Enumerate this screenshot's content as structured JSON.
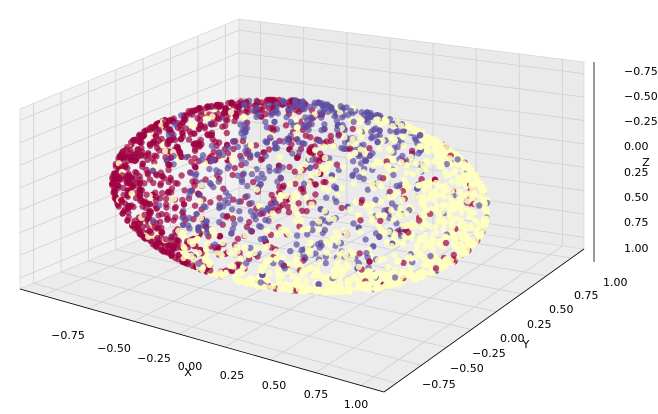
{
  "chart_data": {
    "type": "scatter",
    "projection": "3d",
    "title": "",
    "xlabel": "X",
    "ylabel": "Y",
    "zlabel": "Z",
    "xlim": [
      -1.0,
      1.0
    ],
    "ylim": [
      -1.0,
      1.0
    ],
    "zlim": [
      -1.0,
      1.0
    ],
    "xticks": [
      "−0.75",
      "−0.50",
      "−0.25",
      "0.00",
      "0.25",
      "0.50",
      "0.75",
      "1.00"
    ],
    "yticks": [
      "−0.75",
      "−0.50",
      "−0.25",
      "0.00",
      "0.25",
      "0.50",
      "0.75",
      "1.00"
    ],
    "zticks": [
      "−0.75",
      "−0.50",
      "−0.25",
      "0.00",
      "0.25",
      "0.50",
      "0.75",
      "1.00"
    ],
    "grid": true,
    "pane_color": "#f2f2f2",
    "colormap": "Spectral",
    "groups": [
      {
        "color": "#9e0142",
        "description_value": "x < -0.2 (left side)"
      },
      {
        "color": "#5e4fa2",
        "description_value": "upper middle"
      },
      {
        "color": "#ffffbf",
        "description_value": "right side"
      }
    ],
    "sample_points": [
      {
        "x": -0.9,
        "y": 0.0,
        "z": 0.1,
        "group": 0
      },
      {
        "x": -0.6,
        "y": -0.4,
        "z": -0.3,
        "group": 0
      },
      {
        "x": -0.5,
        "y": 0.6,
        "z": 0.6,
        "group": 0
      },
      {
        "x": -0.2,
        "y": 0.7,
        "z": 0.7,
        "group": 1
      },
      {
        "x": 0.1,
        "y": 0.3,
        "z": 0.9,
        "group": 1
      },
      {
        "x": 0.3,
        "y": -0.2,
        "z": 0.5,
        "group": 1
      },
      {
        "x": 0.5,
        "y": 0.5,
        "z": -0.2,
        "group": 2
      },
      {
        "x": 0.8,
        "y": 0.1,
        "z": 0.0,
        "group": 2
      },
      {
        "x": 0.4,
        "y": -0.7,
        "z": -0.6,
        "group": 2
      }
    ]
  }
}
